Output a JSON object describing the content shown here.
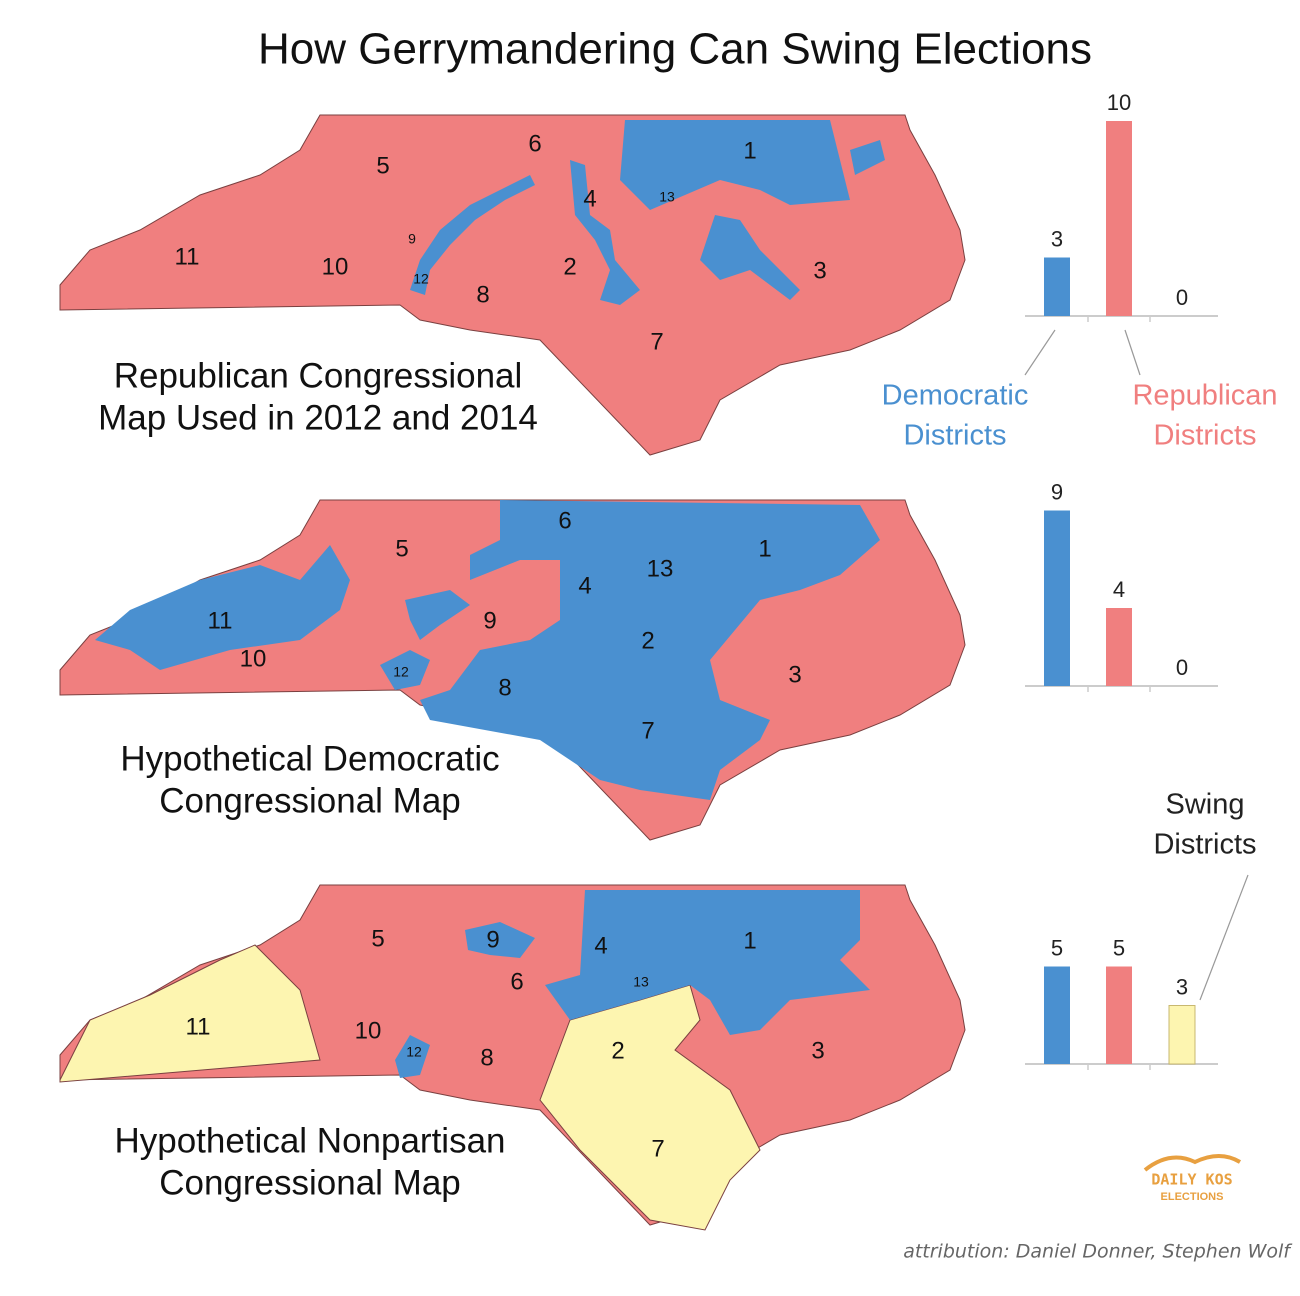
{
  "title": "How Gerrymandering Can Swing Elections",
  "panels": [
    {
      "caption": [
        "Republican Congressional",
        "Map Used in 2012 and 2014"
      ],
      "districts": [
        {
          "label": "1",
          "color": "#4a90d0"
        },
        {
          "label": "2",
          "color": "#f07f7f"
        },
        {
          "label": "3",
          "color": "#f07f7f"
        },
        {
          "label": "4",
          "color": "#4a90d0"
        },
        {
          "label": "5",
          "color": "#f07f7f"
        },
        {
          "label": "6",
          "color": "#f07f7f"
        },
        {
          "label": "7",
          "color": "#f07f7f"
        },
        {
          "label": "8",
          "color": "#f07f7f"
        },
        {
          "label": "9",
          "color": "#f07f7f"
        },
        {
          "label": "10",
          "color": "#f07f7f"
        },
        {
          "label": "11",
          "color": "#f07f7f"
        },
        {
          "label": "12",
          "color": "#4a90d0"
        },
        {
          "label": "13",
          "color": "#f07f7f"
        }
      ]
    },
    {
      "caption": [
        "Hypothetical Democratic",
        "Congressional Map"
      ],
      "districts": [
        {
          "label": "1",
          "color": "#4a90d0"
        },
        {
          "label": "2",
          "color": "#4a90d0"
        },
        {
          "label": "3",
          "color": "#f07f7f"
        },
        {
          "label": "4",
          "color": "#4a90d0"
        },
        {
          "label": "5",
          "color": "#f07f7f"
        },
        {
          "label": "6",
          "color": "#4a90d0"
        },
        {
          "label": "7",
          "color": "#4a90d0"
        },
        {
          "label": "8",
          "color": "#4a90d0"
        },
        {
          "label": "9",
          "color": "#f07f7f"
        },
        {
          "label": "10",
          "color": "#f07f7f"
        },
        {
          "label": "11",
          "color": "#4a90d0"
        },
        {
          "label": "12",
          "color": "#4a90d0"
        },
        {
          "label": "13",
          "color": "#4a90d0"
        }
      ]
    },
    {
      "caption": [
        "Hypothetical Nonpartisan",
        "Congressional Map"
      ],
      "districts": [
        {
          "label": "1",
          "color": "#4a90d0"
        },
        {
          "label": "2",
          "color": "#fdf5b0"
        },
        {
          "label": "3",
          "color": "#f07f7f"
        },
        {
          "label": "4",
          "color": "#4a90d0"
        },
        {
          "label": "5",
          "color": "#f07f7f"
        },
        {
          "label": "6",
          "color": "#f07f7f"
        },
        {
          "label": "7",
          "color": "#fdf5b0"
        },
        {
          "label": "8",
          "color": "#f07f7f"
        },
        {
          "label": "9",
          "color": "#4a90d0"
        },
        {
          "label": "10",
          "color": "#f07f7f"
        },
        {
          "label": "11",
          "color": "#fdf5b0"
        },
        {
          "label": "12",
          "color": "#4a90d0"
        },
        {
          "label": "13",
          "color": "#4a90d0"
        }
      ]
    }
  ],
  "legend": {
    "democratic": [
      "Democratic",
      "Districts"
    ],
    "republican": [
      "Republican",
      "Districts"
    ],
    "swing": [
      "Swing",
      "Districts"
    ]
  },
  "chart_data": [
    {
      "type": "bar",
      "values": [
        3,
        10,
        0
      ],
      "colors": [
        "#4a90d0",
        "#f07f7f",
        "#fdf5b0"
      ],
      "ylim": [
        0,
        10
      ]
    },
    {
      "type": "bar",
      "values": [
        9,
        4,
        0
      ],
      "colors": [
        "#4a90d0",
        "#f07f7f",
        "#fdf5b0"
      ],
      "ylim": [
        0,
        10
      ]
    },
    {
      "type": "bar",
      "values": [
        5,
        5,
        3
      ],
      "colors": [
        "#4a90d0",
        "#f07f7f",
        "#fdf5b0"
      ],
      "ylim": [
        0,
        10
      ]
    }
  ],
  "logo": [
    "DAILY KOS",
    "ELECTIONS"
  ],
  "attribution": "attribution: Daniel Donner, Stephen Wolf"
}
